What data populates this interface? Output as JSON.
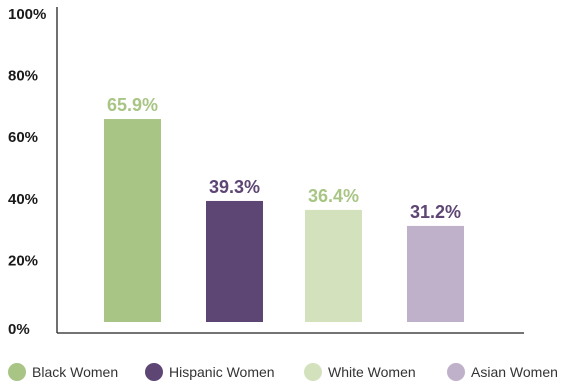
{
  "chart_data": {
    "type": "bar",
    "categories": [
      "Black Women",
      "Hispanic Women",
      "White Women",
      "Asian Women"
    ],
    "values": [
      65.9,
      39.3,
      36.4,
      31.2
    ],
    "data_labels": [
      "65.9%",
      "39.3%",
      "36.4%",
      "31.2%"
    ],
    "colors": [
      "#a8c585",
      "#5e4674",
      "#d4e1bd",
      "#bfb1c9"
    ],
    "label_colors": [
      "#a8c585",
      "#5e4674",
      "#a8c585",
      "#5e4674"
    ],
    "yticks": [
      0,
      20,
      40,
      60,
      80,
      100
    ],
    "ytick_labels": [
      "0%",
      "20%",
      "40%",
      "60%",
      "80%",
      "100%"
    ],
    "ylim": [
      0,
      100
    ],
    "grid": false,
    "legend": {
      "position": "bottom",
      "entries": [
        "Black Women",
        "Hispanic Women",
        "White Women",
        "Asian Women"
      ]
    }
  }
}
